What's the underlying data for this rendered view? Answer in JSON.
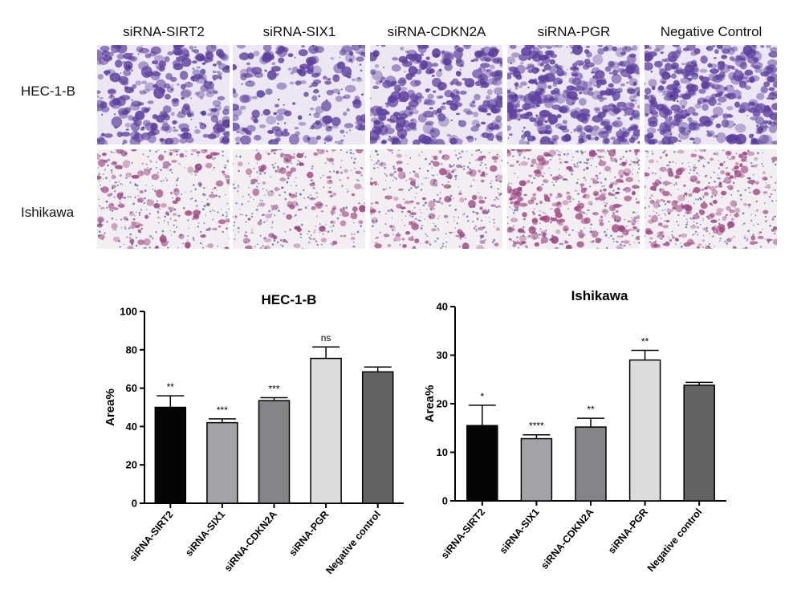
{
  "micrographs": {
    "columns": [
      "siRNA-SIRT2",
      "siRNA-SIX1",
      "siRNA-CDKN2A",
      "siRNA-PGR",
      "Negative Control"
    ],
    "rows": [
      {
        "label": "HEC-1-B",
        "stain": "#5e3f9e",
        "background": "#ece7f2",
        "density": [
          0.62,
          0.35,
          0.7,
          0.88,
          0.82
        ]
      },
      {
        "label": "Ishikawa",
        "stain": "#a04680",
        "background": "#f3eef2",
        "density": [
          0.22,
          0.15,
          0.2,
          0.55,
          0.4
        ]
      }
    ]
  },
  "chart_data": [
    {
      "type": "bar",
      "title": "HEC-1-B",
      "ylabel": "Area%",
      "xlabel": "",
      "ylim": [
        0,
        100
      ],
      "yticks": [
        "0",
        "20",
        "40",
        "60",
        "80",
        "100"
      ],
      "categories": [
        "siRNA-SIRT2",
        "siRNA-SIX1",
        "siRNA-CDKN2A",
        "siRNA-PGR",
        "Negative control"
      ],
      "values": [
        50,
        42,
        53.5,
        75.5,
        68.5
      ],
      "errors": [
        6,
        2,
        1.5,
        6,
        2.5
      ],
      "significance": [
        "**",
        "***",
        "***",
        "ns",
        ""
      ],
      "colors": [
        "#050505",
        "#a4a4a8",
        "#858589",
        "#dcdcdc",
        "#636363"
      ],
      "grid": false
    },
    {
      "type": "bar",
      "title": "Ishikawa",
      "ylabel": "Area%",
      "xlabel": "",
      "ylim": [
        0,
        40
      ],
      "yticks": [
        "0",
        "10",
        "20",
        "30",
        "40"
      ],
      "categories": [
        "siRNA-SIRT2",
        "siRNA-SIX1",
        "siRNA-CDKN2A",
        "siRNA-PGR",
        "Negative control"
      ],
      "values": [
        15.5,
        12.8,
        15.2,
        29,
        23.8
      ],
      "errors": [
        4.2,
        0.8,
        1.8,
        2,
        0.6
      ],
      "significance": [
        "*",
        "****",
        "**",
        "**",
        ""
      ],
      "colors": [
        "#050505",
        "#a4a4a8",
        "#858589",
        "#dcdcdc",
        "#636363"
      ],
      "grid": false
    }
  ]
}
